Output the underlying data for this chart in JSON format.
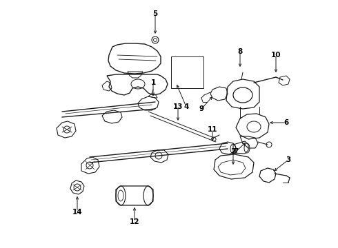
{
  "background_color": "#ffffff",
  "line_color": "#1a1a1a",
  "label_color": "#000000",
  "figsize": [
    4.9,
    3.6
  ],
  "dpi": 100,
  "xlim": [
    0,
    490
  ],
  "ylim": [
    0,
    360
  ]
}
